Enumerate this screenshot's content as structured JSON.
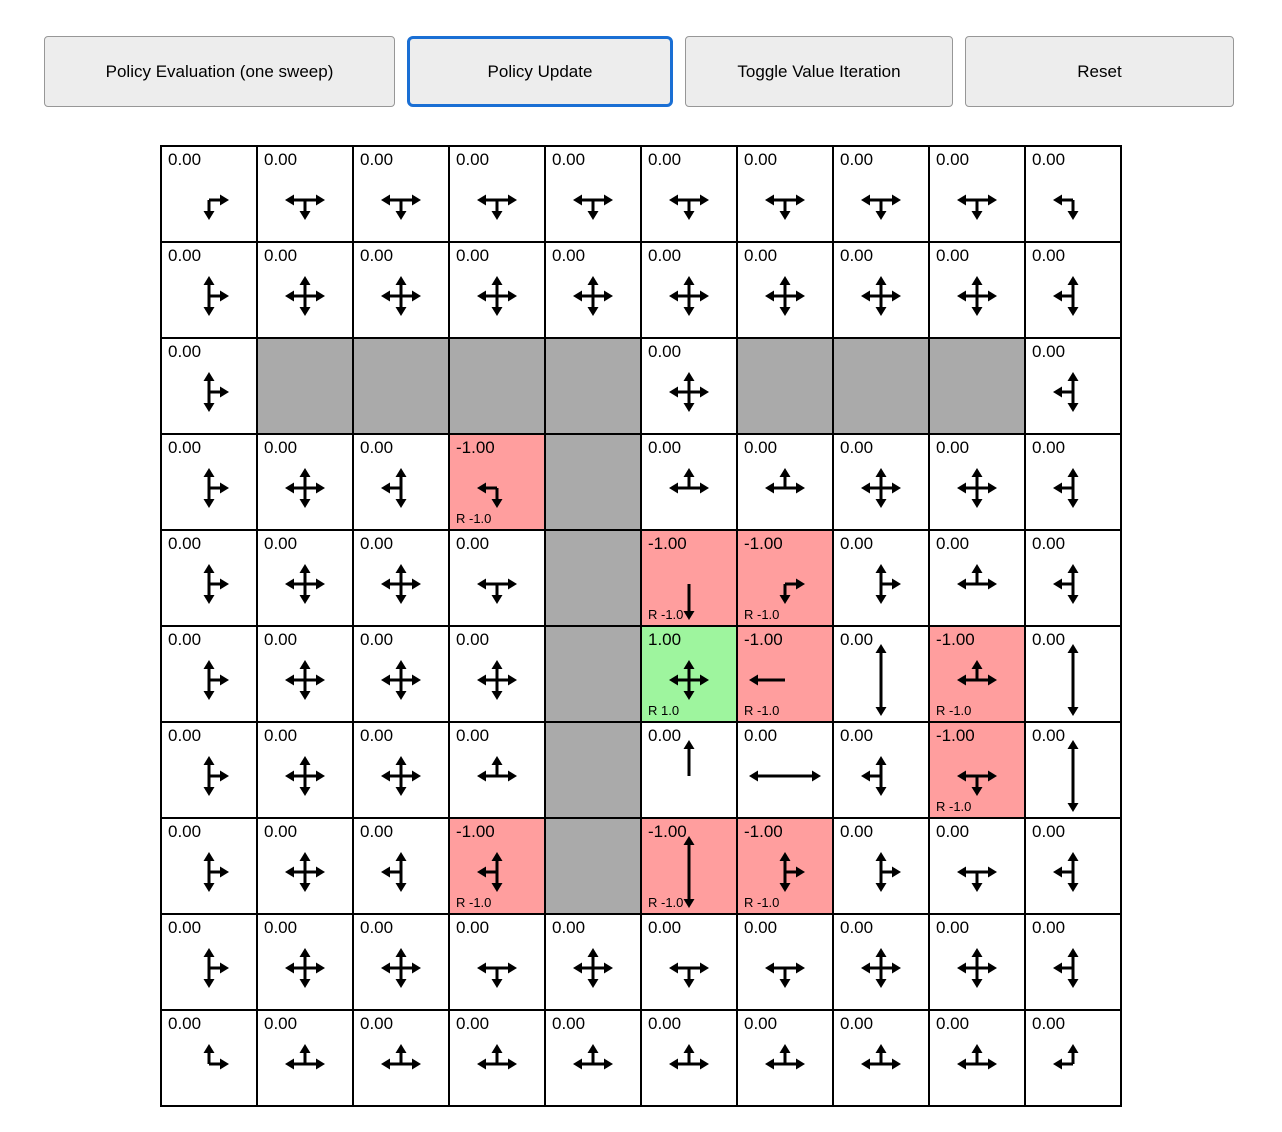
{
  "toolbar": {
    "buttons": [
      {
        "label": "Policy Evaluation (one sweep)",
        "active": false
      },
      {
        "label": "Policy Update",
        "active": true
      },
      {
        "label": "Toggle Value Iteration",
        "active": false
      },
      {
        "label": "Reset",
        "active": false
      }
    ]
  },
  "colors": {
    "wall": "#aaaaaa",
    "penalty": "#ff9e9e",
    "goal": "#9ef59e",
    "focus": "#1a6fd4",
    "arrow": "#000000"
  },
  "grid": {
    "row_count": 10,
    "col_count": 10,
    "rows": [
      [
        {
          "value": "0.00",
          "arrows": "DR"
        },
        {
          "value": "0.00",
          "arrows": "DLR"
        },
        {
          "value": "0.00",
          "arrows": "DLR"
        },
        {
          "value": "0.00",
          "arrows": "DLR"
        },
        {
          "value": "0.00",
          "arrows": "DLR"
        },
        {
          "value": "0.00",
          "arrows": "DLR"
        },
        {
          "value": "0.00",
          "arrows": "DLR"
        },
        {
          "value": "0.00",
          "arrows": "DLR"
        },
        {
          "value": "0.00",
          "arrows": "DLR"
        },
        {
          "value": "0.00",
          "arrows": "DL"
        }
      ],
      [
        {
          "value": "0.00",
          "arrows": "UDR"
        },
        {
          "value": "0.00",
          "arrows": "UDLR"
        },
        {
          "value": "0.00",
          "arrows": "UDLR"
        },
        {
          "value": "0.00",
          "arrows": "UDLR"
        },
        {
          "value": "0.00",
          "arrows": "UDLR"
        },
        {
          "value": "0.00",
          "arrows": "UDLR"
        },
        {
          "value": "0.00",
          "arrows": "UDLR"
        },
        {
          "value": "0.00",
          "arrows": "UDLR"
        },
        {
          "value": "0.00",
          "arrows": "UDLR"
        },
        {
          "value": "0.00",
          "arrows": "UDL"
        }
      ],
      [
        {
          "value": "0.00",
          "arrows": "UDR"
        },
        {
          "type": "wall"
        },
        {
          "type": "wall"
        },
        {
          "type": "wall"
        },
        {
          "type": "wall"
        },
        {
          "value": "0.00",
          "arrows": "UDLR"
        },
        {
          "type": "wall"
        },
        {
          "type": "wall"
        },
        {
          "type": "wall"
        },
        {
          "value": "0.00",
          "arrows": "UDL"
        }
      ],
      [
        {
          "value": "0.00",
          "arrows": "UDR"
        },
        {
          "value": "0.00",
          "arrows": "UDLR"
        },
        {
          "value": "0.00",
          "arrows": "UDL"
        },
        {
          "type": "penalty",
          "value": "-1.00",
          "arrows": "DL",
          "reward": "R -1.0"
        },
        {
          "type": "wall"
        },
        {
          "value": "0.00",
          "arrows": "ULR"
        },
        {
          "value": "0.00",
          "arrows": "ULR"
        },
        {
          "value": "0.00",
          "arrows": "UDLR"
        },
        {
          "value": "0.00",
          "arrows": "UDLR"
        },
        {
          "value": "0.00",
          "arrows": "UDL"
        }
      ],
      [
        {
          "value": "0.00",
          "arrows": "UDR"
        },
        {
          "value": "0.00",
          "arrows": "UDLR"
        },
        {
          "value": "0.00",
          "arrows": "UDLR"
        },
        {
          "value": "0.00",
          "arrows": "DLR"
        },
        {
          "type": "wall"
        },
        {
          "type": "penalty",
          "value": "-1.00",
          "arrows": "D",
          "reward": "R -1.0"
        },
        {
          "type": "penalty",
          "value": "-1.00",
          "arrows": "DR",
          "reward": "R -1.0"
        },
        {
          "value": "0.00",
          "arrows": "UDR"
        },
        {
          "value": "0.00",
          "arrows": "ULR"
        },
        {
          "value": "0.00",
          "arrows": "UDL"
        }
      ],
      [
        {
          "value": "0.00",
          "arrows": "UDR"
        },
        {
          "value": "0.00",
          "arrows": "UDLR"
        },
        {
          "value": "0.00",
          "arrows": "UDLR"
        },
        {
          "value": "0.00",
          "arrows": "UDLR"
        },
        {
          "type": "wall"
        },
        {
          "type": "goal",
          "value": "1.00",
          "arrows": "UDLR",
          "reward": "R 1.0"
        },
        {
          "type": "penalty",
          "value": "-1.00",
          "arrows": "L",
          "reward": "R -1.0"
        },
        {
          "value": "0.00",
          "arrows": "UD"
        },
        {
          "type": "penalty",
          "value": "-1.00",
          "arrows": "ULR",
          "reward": "R -1.0"
        },
        {
          "value": "0.00",
          "arrows": "UD"
        }
      ],
      [
        {
          "value": "0.00",
          "arrows": "UDR"
        },
        {
          "value": "0.00",
          "arrows": "UDLR"
        },
        {
          "value": "0.00",
          "arrows": "UDLR"
        },
        {
          "value": "0.00",
          "arrows": "ULR"
        },
        {
          "type": "wall"
        },
        {
          "value": "0.00",
          "arrows": "U"
        },
        {
          "value": "0.00",
          "arrows": "LR"
        },
        {
          "value": "0.00",
          "arrows": "UDL"
        },
        {
          "type": "penalty",
          "value": "-1.00",
          "arrows": "DLR",
          "reward": "R -1.0"
        },
        {
          "value": "0.00",
          "arrows": "UD"
        }
      ],
      [
        {
          "value": "0.00",
          "arrows": "UDR"
        },
        {
          "value": "0.00",
          "arrows": "UDLR"
        },
        {
          "value": "0.00",
          "arrows": "UDL"
        },
        {
          "type": "penalty",
          "value": "-1.00",
          "arrows": "UDL",
          "reward": "R -1.0"
        },
        {
          "type": "wall"
        },
        {
          "type": "penalty",
          "value": "-1.00",
          "arrows": "UD",
          "reward": "R -1.0"
        },
        {
          "type": "penalty",
          "value": "-1.00",
          "arrows": "UDR",
          "reward": "R -1.0"
        },
        {
          "value": "0.00",
          "arrows": "UDR"
        },
        {
          "value": "0.00",
          "arrows": "DLR"
        },
        {
          "value": "0.00",
          "arrows": "UDL"
        }
      ],
      [
        {
          "value": "0.00",
          "arrows": "UDR"
        },
        {
          "value": "0.00",
          "arrows": "UDLR"
        },
        {
          "value": "0.00",
          "arrows": "UDLR"
        },
        {
          "value": "0.00",
          "arrows": "DLR"
        },
        {
          "value": "0.00",
          "arrows": "UDLR"
        },
        {
          "value": "0.00",
          "arrows": "DLR"
        },
        {
          "value": "0.00",
          "arrows": "DLR"
        },
        {
          "value": "0.00",
          "arrows": "UDLR"
        },
        {
          "value": "0.00",
          "arrows": "UDLR"
        },
        {
          "value": "0.00",
          "arrows": "UDL"
        }
      ],
      [
        {
          "value": "0.00",
          "arrows": "UR"
        },
        {
          "value": "0.00",
          "arrows": "ULR"
        },
        {
          "value": "0.00",
          "arrows": "ULR"
        },
        {
          "value": "0.00",
          "arrows": "ULR"
        },
        {
          "value": "0.00",
          "arrows": "ULR"
        },
        {
          "value": "0.00",
          "arrows": "ULR"
        },
        {
          "value": "0.00",
          "arrows": "ULR"
        },
        {
          "value": "0.00",
          "arrows": "ULR"
        },
        {
          "value": "0.00",
          "arrows": "ULR"
        },
        {
          "value": "0.00",
          "arrows": "UL"
        }
      ]
    ]
  }
}
